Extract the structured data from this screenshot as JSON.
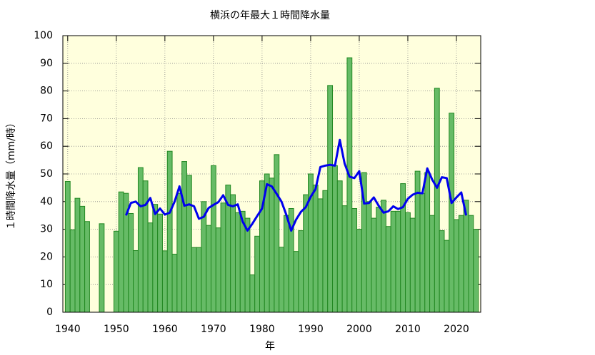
{
  "chart_data": {
    "type": "bar",
    "title": "横浜の年最大１時間降水量",
    "xlabel": "年",
    "ylabel": "１時間降水量（mm/時）",
    "x": [
      1940,
      1941,
      1942,
      1943,
      1944,
      1945,
      1946,
      1947,
      1948,
      1949,
      1950,
      1951,
      1952,
      1953,
      1954,
      1955,
      1956,
      1957,
      1958,
      1959,
      1960,
      1961,
      1962,
      1963,
      1964,
      1965,
      1966,
      1967,
      1968,
      1969,
      1970,
      1971,
      1972,
      1973,
      1974,
      1975,
      1976,
      1977,
      1978,
      1979,
      1980,
      1981,
      1982,
      1983,
      1984,
      1985,
      1986,
      1987,
      1988,
      1989,
      1990,
      1991,
      1992,
      1993,
      1994,
      1995,
      1996,
      1997,
      1998,
      1999,
      2000,
      2001,
      2002,
      2003,
      2004,
      2005,
      2006,
      2007,
      2008,
      2009,
      2010,
      2011,
      2012,
      2013,
      2014,
      2015,
      2016,
      2017,
      2018,
      2019,
      2020,
      2021,
      2022,
      2023,
      2024
    ],
    "series": [
      {
        "type": "bar",
        "color": "#66bb66",
        "edge_color": "#228822",
        "values": [
          47.3,
          29.8,
          41.2,
          38.3,
          32.8,
          null,
          null,
          32.0,
          null,
          null,
          29.3,
          43.5,
          43.0,
          35.7,
          22.3,
          52.3,
          47.5,
          32.3,
          39.0,
          35.5,
          22.2,
          58.2,
          21.0,
          43.0,
          54.5,
          49.5,
          23.4,
          23.4,
          40.0,
          31.4,
          53.0,
          30.5,
          39.5,
          46.0,
          42.5,
          36.0,
          36.5,
          34.0,
          13.5,
          27.5,
          47.5,
          50.0,
          48.5,
          57.0,
          23.5,
          35.0,
          37.5,
          22.0,
          29.5,
          42.5,
          50.0,
          46.0,
          41.0,
          44.0,
          82.0,
          53.0,
          47.5,
          38.5,
          92.0,
          37.5,
          30.0,
          50.5,
          40.0,
          34.0,
          38.0,
          40.5,
          31.0,
          36.5,
          36.5,
          46.5,
          36.0,
          34.0,
          51.0,
          43.0,
          50.5,
          35.0,
          81.0,
          29.5,
          26.0,
          72.0,
          33.5,
          35.0,
          40.5,
          35.0,
          30.0
        ]
      },
      {
        "type": "line",
        "color": "#0000ee",
        "values": [
          null,
          null,
          null,
          null,
          null,
          null,
          null,
          null,
          null,
          null,
          null,
          null,
          35.0,
          39.5,
          40.0,
          38.3,
          38.8,
          41.3,
          35.5,
          37.5,
          35.3,
          36.0,
          40.0,
          45.5,
          38.5,
          39.0,
          38.3,
          33.8,
          34.5,
          37.7,
          38.8,
          39.8,
          42.3,
          38.8,
          38.3,
          39.0,
          32.8,
          29.5,
          32.0,
          34.8,
          37.5,
          46.3,
          45.5,
          42.8,
          40.0,
          35.2,
          29.5,
          33.5,
          36.3,
          38.0,
          41.7,
          44.5,
          52.5,
          53.0,
          53.3,
          53.0,
          62.3,
          53.7,
          49.0,
          48.5,
          51.0,
          39.3,
          39.5,
          41.5,
          38.5,
          36.0,
          36.5,
          38.3,
          37.3,
          38.0,
          41.0,
          42.5,
          43.2,
          43.0,
          52.0,
          48.0,
          45.0,
          48.8,
          48.5,
          39.5,
          41.5,
          43.3,
          35.0,
          null,
          null
        ]
      }
    ],
    "xlim": [
      1939,
      2025
    ],
    "xticks": [
      1940,
      1950,
      1960,
      1970,
      1980,
      1990,
      2000,
      2010,
      2020
    ],
    "ylim": [
      0,
      100
    ],
    "yticks": [
      0,
      10,
      20,
      30,
      40,
      50,
      60,
      70,
      80,
      90,
      100
    ],
    "grid": true,
    "background": "#ffffdd"
  }
}
